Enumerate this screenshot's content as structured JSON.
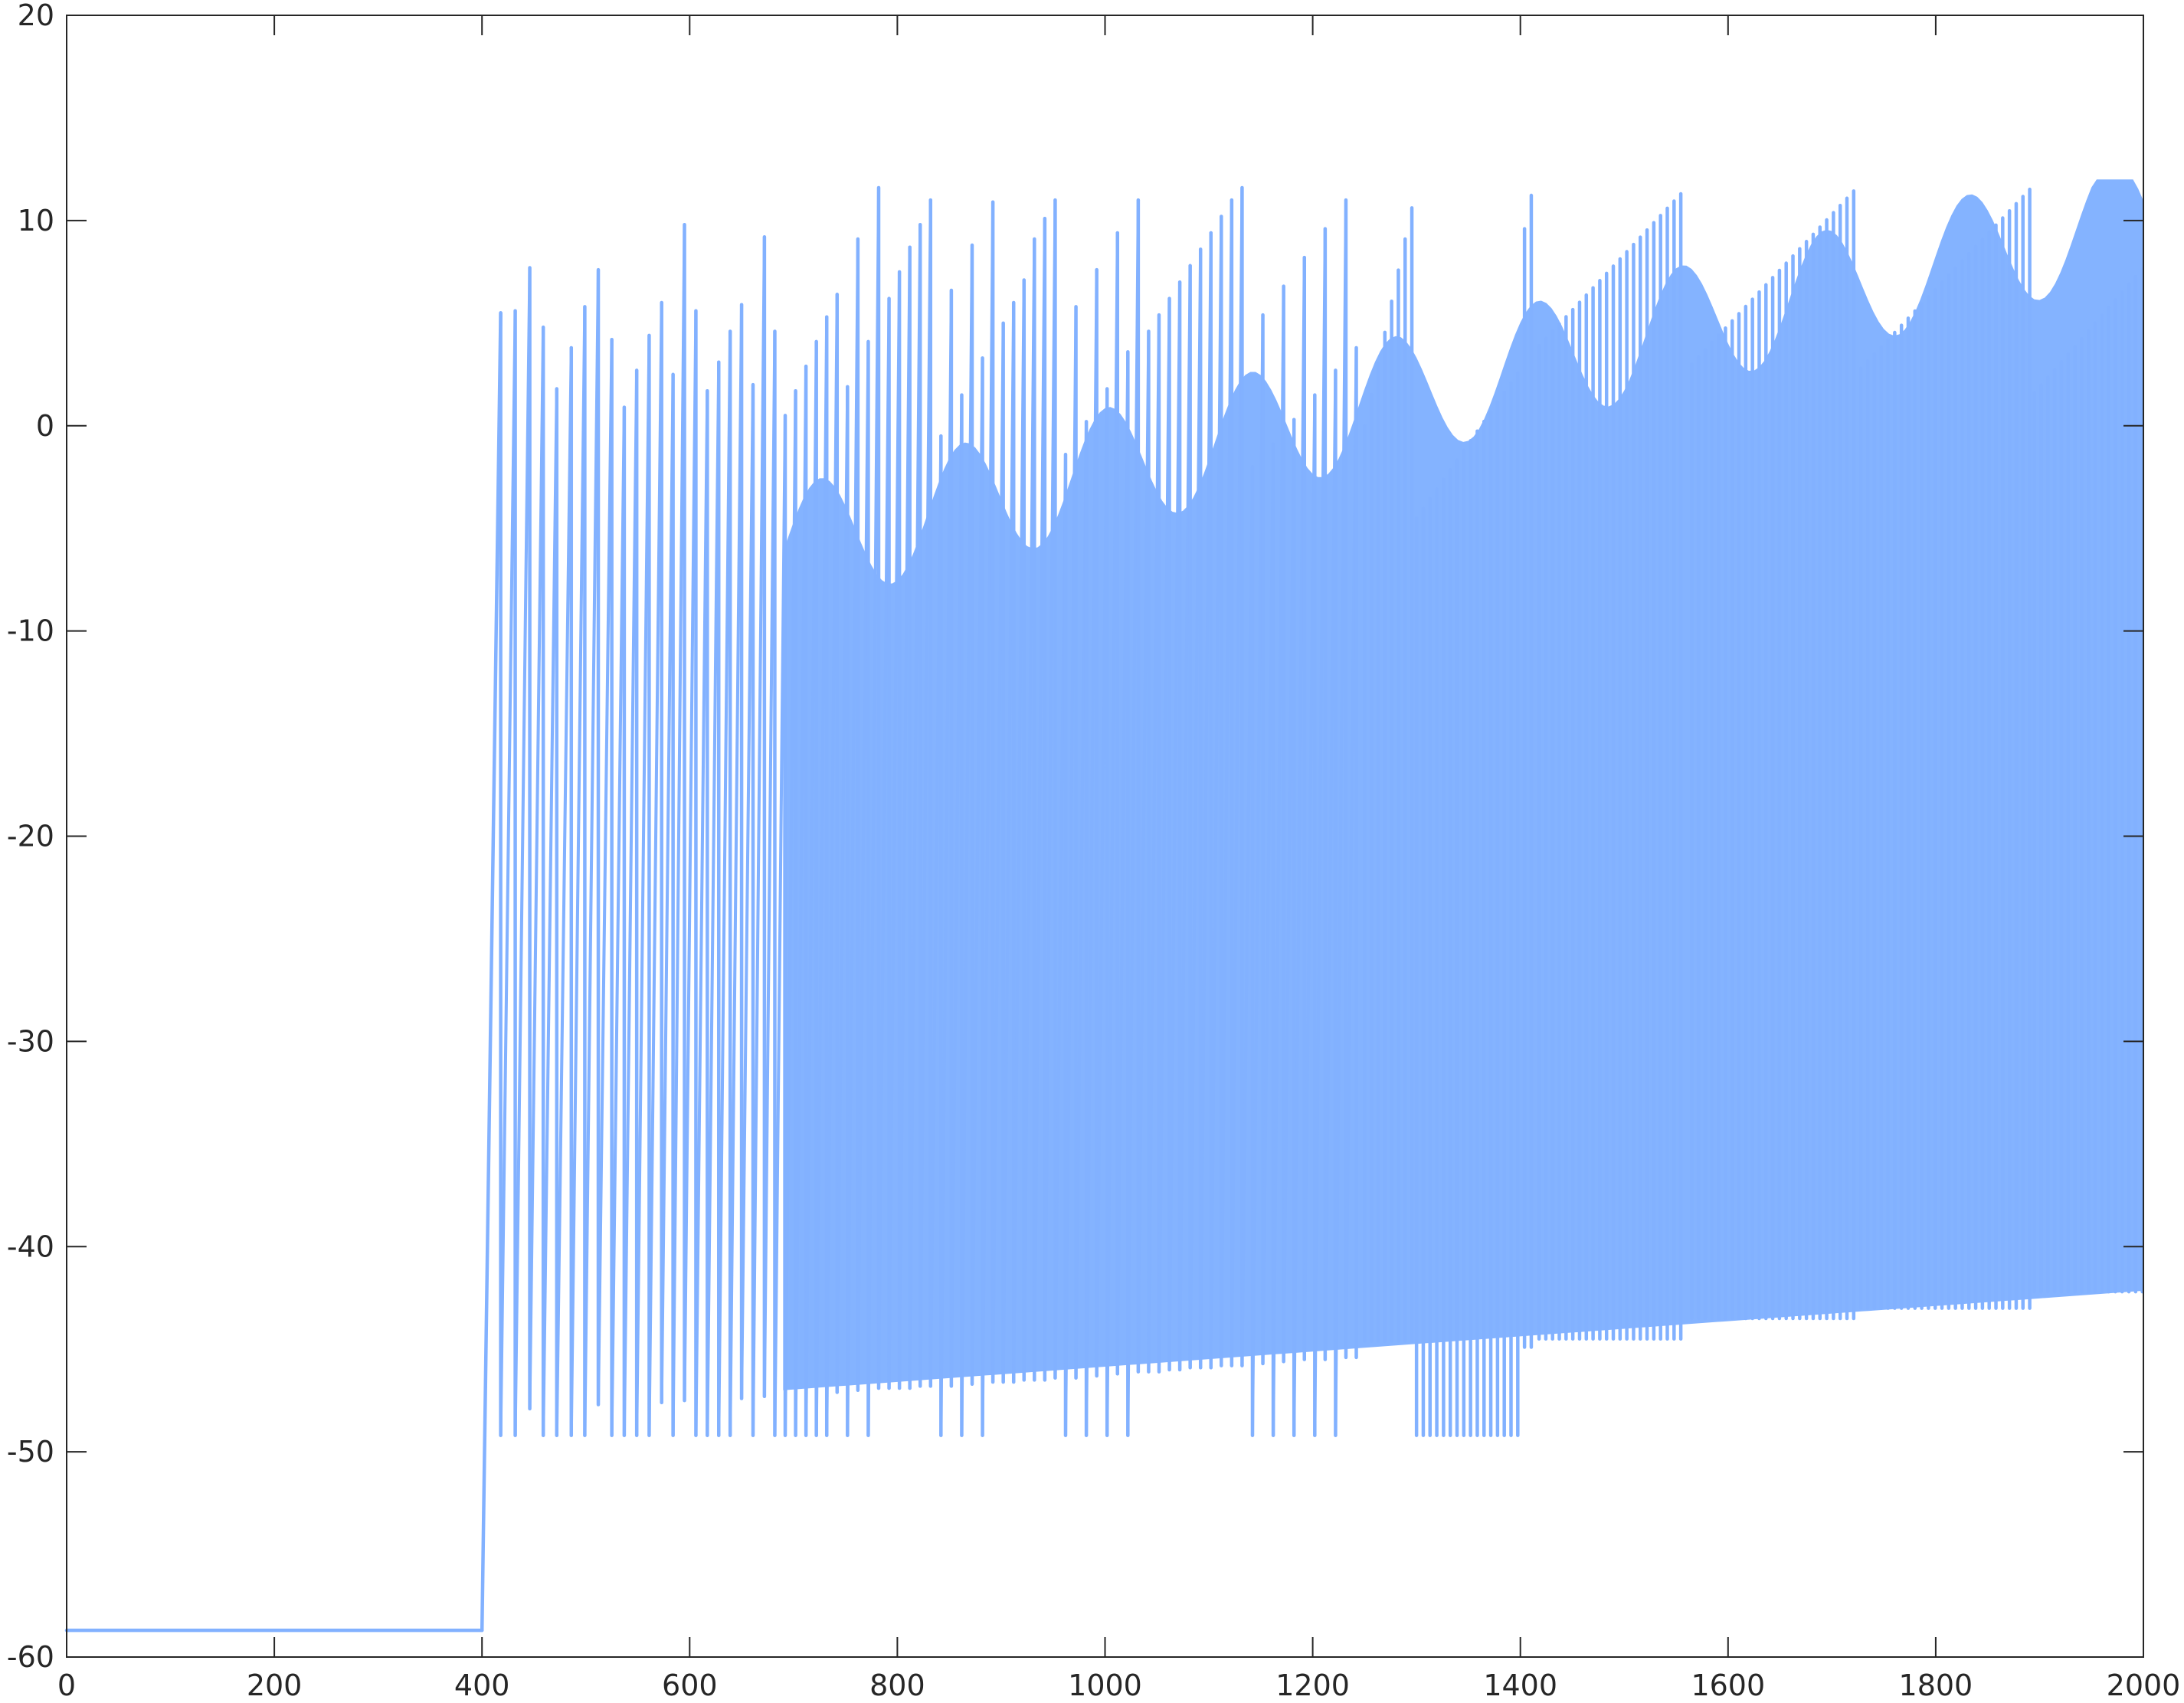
{
  "chart_data": {
    "type": "line",
    "title": "",
    "xlabel": "",
    "ylabel": "",
    "xlim": [
      0,
      2000
    ],
    "ylim": [
      -60,
      20
    ],
    "xticks": [
      0,
      200,
      400,
      600,
      800,
      1000,
      1200,
      1400,
      1600,
      1800,
      2000
    ],
    "yticks": [
      20,
      10,
      0,
      -10,
      -20,
      -30,
      -40,
      -50,
      -60
    ],
    "xtick_labels": [
      "0",
      "200",
      "400",
      "600",
      "800",
      "1000",
      "1200",
      "1400",
      "1600",
      "1800",
      "2000"
    ],
    "ytick_labels": [
      "20",
      "10",
      "0",
      "-10",
      "-20",
      "-30",
      "-40",
      "-50",
      "-60"
    ],
    "grid": false,
    "box": true,
    "series": [
      {
        "color": "#82b1ff",
        "rest_level": -58.7,
        "onset_x": 400,
        "reset_level": -49.2,
        "spikes": [
          {
            "x": 418,
            "peak": 5.5,
            "trough": -49.2
          },
          {
            "x": 432,
            "peak": 5.6,
            "trough": -49.2
          },
          {
            "x": 446,
            "peak": 7.7,
            "trough": -47.9
          },
          {
            "x": 459,
            "peak": 4.8,
            "trough": -49.2
          },
          {
            "x": 472,
            "peak": 1.8,
            "trough": -49.2
          },
          {
            "x": 486,
            "peak": 3.8,
            "trough": -49.2
          },
          {
            "x": 499,
            "peak": 5.8,
            "trough": -49.2
          },
          {
            "x": 512,
            "peak": 7.6,
            "trough": -47.7
          },
          {
            "x": 525,
            "peak": 4.2,
            "trough": -49.2
          },
          {
            "x": 537,
            "peak": 0.9,
            "trough": -49.2
          },
          {
            "x": 549,
            "peak": 2.7,
            "trough": -49.2
          },
          {
            "x": 561,
            "peak": 4.4,
            "trough": -49.2
          },
          {
            "x": 573,
            "peak": 6.0,
            "trough": -47.6
          },
          {
            "x": 584,
            "peak": 2.5,
            "trough": -49.2
          },
          {
            "x": 595,
            "peak": 9.8,
            "trough": -47.5
          },
          {
            "x": 606,
            "peak": 5.6,
            "trough": -49.2
          },
          {
            "x": 617,
            "peak": 1.7,
            "trough": -49.2
          },
          {
            "x": 628,
            "peak": 3.1,
            "trough": -49.2
          },
          {
            "x": 639,
            "peak": 4.6,
            "trough": -49.2
          },
          {
            "x": 650,
            "peak": 5.9,
            "trough": -47.4
          },
          {
            "x": 661,
            "peak": 2.0,
            "trough": -49.2
          },
          {
            "x": 672,
            "peak": 9.2,
            "trough": -47.3
          },
          {
            "x": 682,
            "peak": 4.6,
            "trough": -49.2
          },
          {
            "x": 692,
            "peak": 0.5,
            "trough": -49.2
          },
          {
            "x": 702,
            "peak": 1.7,
            "trough": -49.2
          },
          {
            "x": 712,
            "peak": 2.9,
            "trough": -49.2
          },
          {
            "x": 722,
            "peak": 4.1,
            "trough": -49.2
          },
          {
            "x": 732,
            "peak": 5.3,
            "trough": -49.2
          },
          {
            "x": 742,
            "peak": 6.4,
            "trough": -47.1
          },
          {
            "x": 752,
            "peak": 1.9,
            "trough": -49.2
          },
          {
            "x": 762,
            "peak": 9.1,
            "trough": -47.0
          },
          {
            "x": 772,
            "peak": 4.1,
            "trough": -49.2
          },
          {
            "x": 782,
            "peak": 11.6,
            "trough": -46.9
          },
          {
            "x": 792,
            "peak": 6.2,
            "trough": -46.9
          },
          {
            "x": 802,
            "peak": 7.5,
            "trough": -46.9
          },
          {
            "x": 812,
            "peak": 8.7,
            "trough": -46.9
          },
          {
            "x": 822,
            "peak": 9.8,
            "trough": -46.8
          },
          {
            "x": 832,
            "peak": 11.0,
            "trough": -46.8
          },
          {
            "x": 842,
            "peak": -0.5,
            "trough": -49.2
          },
          {
            "x": 852,
            "peak": 6.6,
            "trough": -46.8
          },
          {
            "x": 862,
            "peak": 1.5,
            "trough": -49.2
          },
          {
            "x": 872,
            "peak": 8.8,
            "trough": -46.7
          },
          {
            "x": 882,
            "peak": 3.3,
            "trough": -49.2
          },
          {
            "x": 892,
            "peak": 10.9,
            "trough": -46.6
          },
          {
            "x": 902,
            "peak": 5.0,
            "trough": -46.6
          },
          {
            "x": 912,
            "peak": 6.0,
            "trough": -46.6
          },
          {
            "x": 922,
            "peak": 7.1,
            "trough": -46.5
          },
          {
            "x": 932,
            "peak": 9.1,
            "trough": -46.5
          },
          {
            "x": 942,
            "peak": 10.1,
            "trough": -46.5
          },
          {
            "x": 952,
            "peak": 11.0,
            "trough": -46.4
          },
          {
            "x": 962,
            "peak": -1.4,
            "trough": -49.2
          },
          {
            "x": 972,
            "peak": 5.8,
            "trough": -46.4
          },
          {
            "x": 982,
            "peak": 0.2,
            "trough": -49.2
          },
          {
            "x": 992,
            "peak": 7.6,
            "trough": -46.3
          },
          {
            "x": 1002,
            "peak": 1.8,
            "trough": -49.2
          },
          {
            "x": 1012,
            "peak": 9.4,
            "trough": -46.2
          },
          {
            "x": 1022,
            "peak": 3.6,
            "trough": -49.2
          },
          {
            "x": 1032,
            "peak": 11.0,
            "trough": -46.1
          },
          {
            "x": 1042,
            "peak": 4.6,
            "trough": -46.1
          },
          {
            "x": 1052,
            "peak": 5.4,
            "trough": -46.1
          },
          {
            "x": 1062,
            "peak": 6.2,
            "trough": -46.0
          },
          {
            "x": 1072,
            "peak": 7.0,
            "trough": -46.0
          },
          {
            "x": 1082,
            "peak": 7.8,
            "trough": -45.9
          },
          {
            "x": 1092,
            "peak": 8.6,
            "trough": -45.9
          },
          {
            "x": 1102,
            "peak": 9.4,
            "trough": -45.9
          },
          {
            "x": 1112,
            "peak": 10.2,
            "trough": -45.8
          },
          {
            "x": 1122,
            "peak": 11.0,
            "trough": -45.8
          },
          {
            "x": 1132,
            "peak": 11.6,
            "trough": -45.8
          },
          {
            "x": 1142,
            "peak": -2.0,
            "trough": -49.2
          },
          {
            "x": 1152,
            "peak": 5.4,
            "trough": -45.7
          },
          {
            "x": 1162,
            "peak": -0.9,
            "trough": -49.2
          },
          {
            "x": 1172,
            "peak": 6.8,
            "trough": -45.6
          },
          {
            "x": 1182,
            "peak": 0.3,
            "trough": -49.2
          },
          {
            "x": 1192,
            "peak": 8.2,
            "trough": -45.5
          },
          {
            "x": 1202,
            "peak": 1.5,
            "trough": -49.2
          },
          {
            "x": 1212,
            "peak": 9.6,
            "trough": -45.5
          },
          {
            "x": 1222,
            "peak": 2.7,
            "trough": -49.2
          },
          {
            "x": 1232,
            "peak": 11.0,
            "trough": -45.4
          },
          {
            "x": 1242,
            "peak": 3.8,
            "trough": -45.4
          }
        ]
      }
    ]
  }
}
